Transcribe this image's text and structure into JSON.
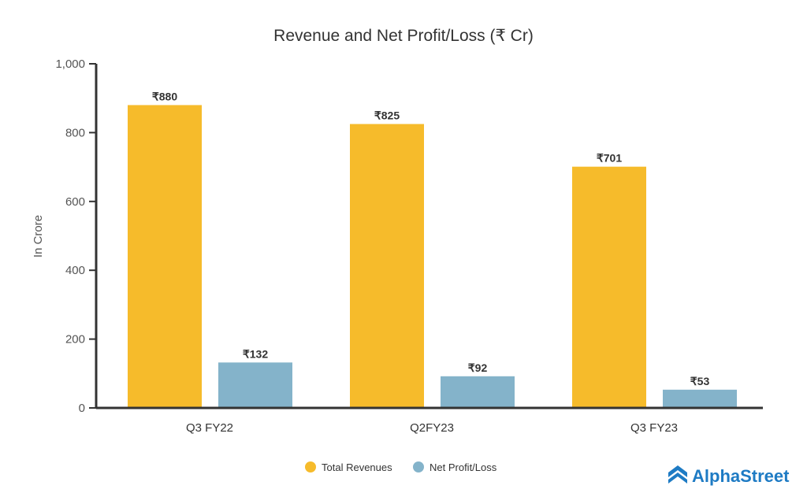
{
  "chart_data": {
    "type": "bar",
    "title": "Revenue and Net Profit/Loss (₹ Cr)",
    "ylabel": "In Crore",
    "xlabel": "",
    "ylim": [
      0,
      1000
    ],
    "yticks": [
      0,
      200,
      400,
      600,
      800,
      1000
    ],
    "ytick_labels": [
      "0",
      "200",
      "400",
      "600",
      "800",
      "1,000"
    ],
    "categories": [
      "Q3 FY22",
      "Q2FY23",
      "Q3 FY23"
    ],
    "series": [
      {
        "name": "Total Revenues",
        "values": [
          880,
          825,
          701
        ],
        "labels": [
          "₹880",
          "₹825",
          "₹701"
        ],
        "color": "#F6BB2B"
      },
      {
        "name": "Net Profit/Loss",
        "values": [
          132,
          92,
          53
        ],
        "labels": [
          "₹132",
          "₹92",
          "₹53"
        ],
        "color": "#84B3CA"
      }
    ],
    "legend": "bottom-center",
    "grid": false
  },
  "brand": {
    "name": "AlphaStreet",
    "color": "#1E7BC4"
  }
}
